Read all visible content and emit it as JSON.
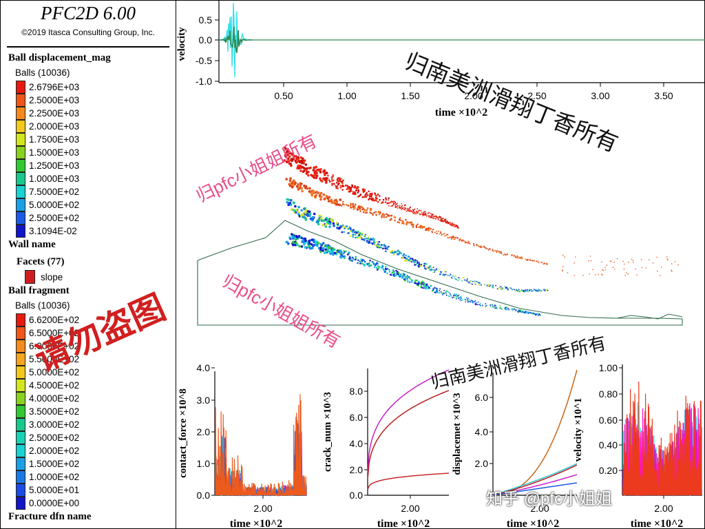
{
  "app": {
    "title": "PFC2D 6.00",
    "copyright": "©2019 Itasca Consulting Group, Inc."
  },
  "legend": {
    "displacement": {
      "title": "Ball displacement_mag",
      "subtitle": "Balls (10036)",
      "entries": [
        {
          "label": "2.6796E+03",
          "color": "#e61a0f"
        },
        {
          "label": "2.5000E+03",
          "color": "#f0561a"
        },
        {
          "label": "2.2500E+03",
          "color": "#f58a1e"
        },
        {
          "label": "2.0000E+03",
          "color": "#f2c81a"
        },
        {
          "label": "1.7500E+03",
          "color": "#d2e61e"
        },
        {
          "label": "1.5000E+03",
          "color": "#8ad21e"
        },
        {
          "label": "1.2500E+03",
          "color": "#32c832"
        },
        {
          "label": "1.0000E+03",
          "color": "#19c88c"
        },
        {
          "label": "7.5000E+02",
          "color": "#19d2d2"
        },
        {
          "label": "5.0000E+02",
          "color": "#1aa0e6"
        },
        {
          "label": "2.5000E+02",
          "color": "#1a5ae6"
        },
        {
          "label": "3.1094E-02",
          "color": "#1414c8"
        }
      ]
    },
    "wall": {
      "title": "Wall name",
      "facets": "Facets (77)",
      "slope_label": "slope"
    },
    "fragment": {
      "title": "Ball fragment",
      "subtitle": "Balls (10036)",
      "entries": [
        {
          "label": "6.6200E+02",
          "color": "#e61a0f"
        },
        {
          "label": "6.5000E+02",
          "color": "#f0561a"
        },
        {
          "label": "6.0000E+02",
          "color": "#f58a1e"
        },
        {
          "label": "5.5000E+02",
          "color": "#f5a51e"
        },
        {
          "label": "5.0000E+02",
          "color": "#f2c81a"
        },
        {
          "label": "4.5000E+02",
          "color": "#d2e61e"
        },
        {
          "label": "4.0000E+02",
          "color": "#8ad21e"
        },
        {
          "label": "3.5000E+02",
          "color": "#32c832"
        },
        {
          "label": "3.0000E+02",
          "color": "#19c88c"
        },
        {
          "label": "2.5000E+02",
          "color": "#19d2b4"
        },
        {
          "label": "2.0000E+02",
          "color": "#19d2d2"
        },
        {
          "label": "1.5000E+02",
          "color": "#1aa0e6"
        },
        {
          "label": "1.0000E+02",
          "color": "#1a78e6"
        },
        {
          "label": "5.0000E+01",
          "color": "#1a4be6"
        },
        {
          "label": "0.0000E+00",
          "color": "#1414c8"
        }
      ]
    },
    "dfn": {
      "title": "Fracture dfn name"
    }
  },
  "top_chart": {
    "ylabel": "velocity",
    "xlabel": "time ×10^2",
    "yticks": [
      "0.5",
      "0.0",
      "-0.5",
      "-1.0"
    ],
    "xticks": [
      "0.50",
      "1.00",
      "1.50",
      "2.00",
      "2.50",
      "3.00",
      "3.50"
    ]
  },
  "bottom_charts": [
    {
      "ylabel": "contact_force ×10^8",
      "xlabel": "time ×10^2",
      "yticks": [
        "4.0",
        "3.0",
        "2.0",
        "1.0",
        "0.0"
      ],
      "xticks": [
        "2.00"
      ]
    },
    {
      "ylabel": "crack_num ×10^3",
      "xlabel": "time ×10^2",
      "yticks": [
        "8.0",
        "6.0",
        "4.0",
        "2.0",
        "0.0"
      ],
      "xticks": [
        "2.00"
      ]
    },
    {
      "ylabel": "displacemet ×10^3",
      "xlabel": "time ×10^2",
      "yticks": [
        "6.0",
        "4.0",
        "2.0"
      ],
      "xticks": [
        "2.00"
      ]
    },
    {
      "ylabel": "velocity ×10^1",
      "xlabel": "time ×10^2",
      "yticks": [
        "1.00",
        "0.80",
        "0.60",
        "0.40",
        "0.20"
      ],
      "xticks": [
        "2.00"
      ]
    }
  ],
  "watermarks": {
    "south_america_1": "归南美洲滑翔丁香所有",
    "south_america_2": "归南美洲滑翔丁香所有",
    "pfc_1": "归pfc小姐姐所有",
    "pfc_2": "归pfc小姐姐所有",
    "no_steal": "请勿盗图",
    "zhihu": "知乎 @pfc小姐姐"
  },
  "colors": {
    "red": "#e61a0f",
    "orange": "#ec5a1e",
    "blue": "#1414c8",
    "wall": "#2e6b4a",
    "magenta": "#c81ec8",
    "cyan": "#30e0e8",
    "pink": "#e8508a"
  }
}
